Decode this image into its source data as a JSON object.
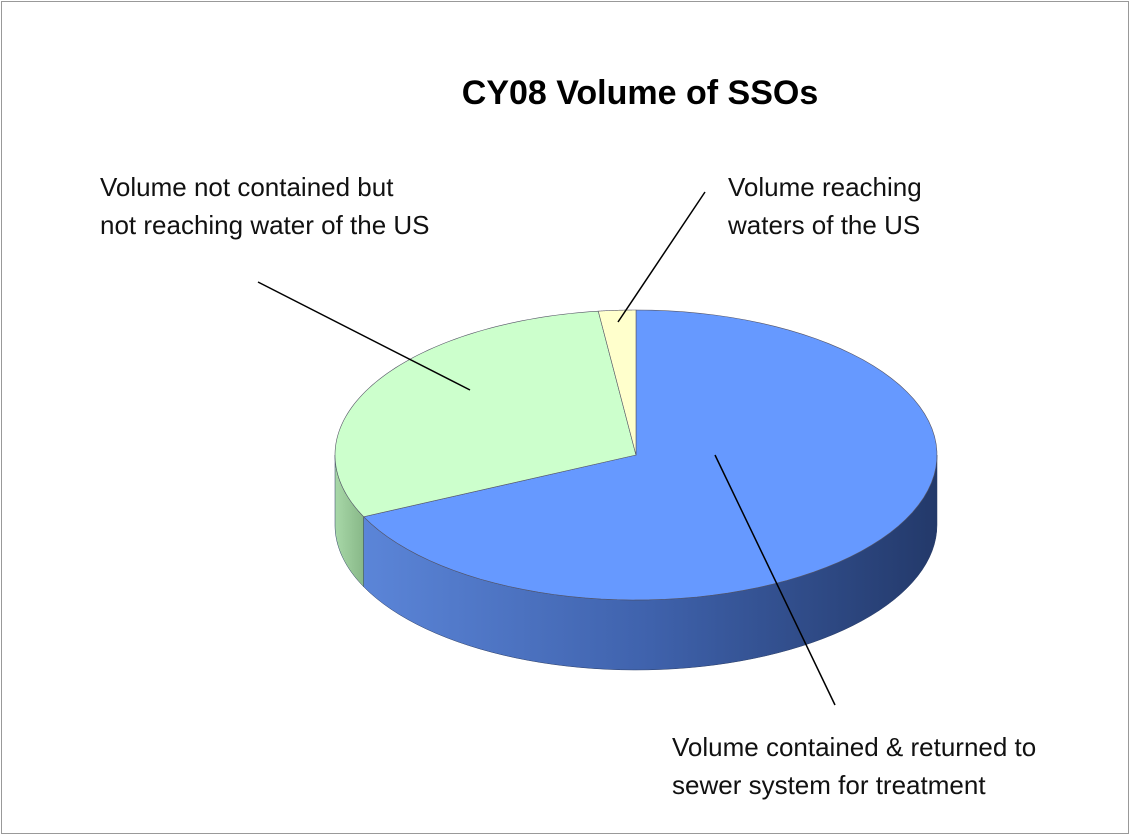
{
  "chart_data": {
    "type": "pie",
    "title": "CY08  Volume of SSOs",
    "categories": [
      "Volume contained & returned to sewer system for treatment",
      "Volume not contained but not reaching water of the US",
      "Volume reaching waters of the US"
    ],
    "values": [
      68,
      30,
      2
    ],
    "colors": [
      "#6699ff",
      "#ccffcc",
      "#ffffcc"
    ]
  }
}
